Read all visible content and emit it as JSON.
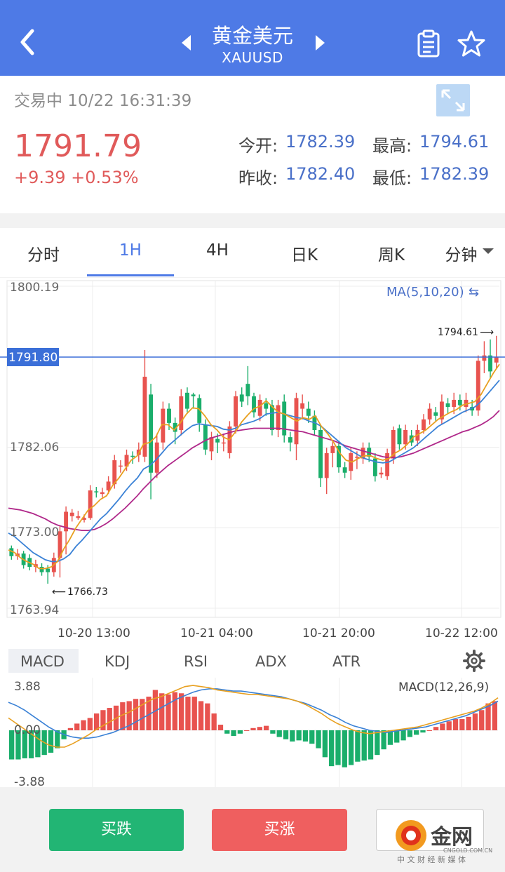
{
  "header": {
    "title": "黄金美元",
    "symbol": "XAUUSD"
  },
  "quote": {
    "status": "交易中 10/22 16:31:39",
    "price": "1791.79",
    "change": "+9.39 +0.53%",
    "open_label": "今开:",
    "open_value": "1782.39",
    "high_label": "最高:",
    "high_value": "1794.61",
    "prev_close_label": "昨收:",
    "prev_close_value": "1782.40",
    "low_label": "最低:",
    "low_value": "1782.39"
  },
  "tabs": {
    "items": [
      "分时",
      "1H",
      "4H",
      "日K",
      "周K",
      "分钟"
    ],
    "active": "1H"
  },
  "chart": {
    "ma_label": "MA(5,10,20)",
    "y_top": "1800.19",
    "y_mid": "1782.06",
    "y_lower": "1773.00",
    "y_bottom": "1763.94",
    "current_tag": "1791.80",
    "max_label": "1794.61",
    "min_label": "1766.73",
    "x_labels": [
      "10-20 13:00",
      "10-21 04:00",
      "10-21 20:00",
      "10-22 12:00"
    ],
    "colors": {
      "up": "#e8534f",
      "down": "#1aae6b",
      "ma5": "#e8a020",
      "ma10": "#3b82d6",
      "ma20": "#b0288a"
    }
  },
  "chart_data": {
    "type": "candlestick",
    "ylim": [
      1763.94,
      1800.19
    ],
    "candles": [
      [
        1770.7,
        1769.8,
        1771.0,
        1769.4
      ],
      [
        1769.8,
        1770.1,
        1770.6,
        1769.4
      ],
      [
        1770.1,
        1768.8,
        1770.4,
        1768.4
      ],
      [
        1769.6,
        1768.6,
        1770.0,
        1768.2
      ],
      [
        1768.6,
        1768.9,
        1769.4,
        1768.0
      ],
      [
        1768.6,
        1768.0,
        1769.0,
        1767.6
      ],
      [
        1768.4,
        1768.0,
        1768.8,
        1766.7
      ],
      [
        1768.0,
        1769.6,
        1770.2,
        1767.5
      ],
      [
        1769.6,
        1772.6,
        1773.2,
        1767.4
      ],
      [
        1772.6,
        1774.8,
        1775.4,
        1770.0
      ],
      [
        1774.3,
        1774.7,
        1775.1,
        1773.7
      ],
      [
        1774.1,
        1774.3,
        1774.9,
        1773.9
      ],
      [
        1773.9,
        1774.1,
        1774.5,
        1773.6
      ],
      [
        1774.1,
        1777.2,
        1777.8,
        1773.9
      ],
      [
        1777.1,
        1777.0,
        1777.6,
        1776.4
      ],
      [
        1776.8,
        1777.0,
        1777.5,
        1776.4
      ],
      [
        1777.2,
        1778.2,
        1778.8,
        1776.8
      ],
      [
        1777.9,
        1780.6,
        1781.2,
        1777.4
      ],
      [
        1779.9,
        1780.0,
        1780.6,
        1779.2
      ],
      [
        1779.9,
        1781.2,
        1781.8,
        1779.4
      ],
      [
        1781.1,
        1781.0,
        1781.6,
        1780.2
      ],
      [
        1781.2,
        1781.8,
        1782.6,
        1780.4
      ],
      [
        1781.0,
        1790.0,
        1793.0,
        1780.4
      ],
      [
        1788.0,
        1779.2,
        1789.2,
        1776.2
      ],
      [
        1779.2,
        1782.6,
        1783.6,
        1778.6
      ],
      [
        1782.6,
        1786.4,
        1787.2,
        1781.8
      ],
      [
        1786.4,
        1784.8,
        1787.0,
        1784.0
      ],
      [
        1784.8,
        1783.8,
        1785.4,
        1782.4
      ],
      [
        1784.0,
        1787.8,
        1788.6,
        1783.4
      ],
      [
        1788.2,
        1786.4,
        1788.8,
        1786.0
      ],
      [
        1788.0,
        1787.8,
        1788.2,
        1786.4
      ],
      [
        1787.6,
        1784.8,
        1788.0,
        1783.8
      ],
      [
        1784.6,
        1781.8,
        1785.2,
        1781.2
      ],
      [
        1781.6,
        1783.2,
        1783.8,
        1780.6
      ],
      [
        1783.0,
        1782.6,
        1783.6,
        1781.4
      ],
      [
        1782.6,
        1782.6,
        1783.6,
        1781.6
      ],
      [
        1781.4,
        1784.4,
        1785.0,
        1780.8
      ],
      [
        1784.4,
        1787.8,
        1788.4,
        1783.6
      ],
      [
        1788.0,
        1787.2,
        1788.8,
        1786.6
      ],
      [
        1789.2,
        1787.8,
        1791.2,
        1786.8
      ],
      [
        1787.8,
        1786.0,
        1788.2,
        1785.4
      ],
      [
        1785.6,
        1787.4,
        1788.0,
        1785.0
      ],
      [
        1787.0,
        1786.4,
        1787.6,
        1785.6
      ],
      [
        1786.8,
        1784.0,
        1787.4,
        1783.4
      ],
      [
        1784.0,
        1786.8,
        1787.4,
        1783.2
      ],
      [
        1787.2,
        1783.4,
        1788.0,
        1782.6
      ],
      [
        1783.2,
        1782.6,
        1783.8,
        1781.6
      ],
      [
        1782.4,
        1787.6,
        1788.2,
        1780.6
      ],
      [
        1786.4,
        1787.0,
        1788.0,
        1785.2
      ],
      [
        1786.4,
        1785.6,
        1787.2,
        1784.8
      ],
      [
        1785.6,
        1784.0,
        1786.2,
        1783.4
      ],
      [
        1784.0,
        1778.6,
        1784.6,
        1777.6
      ],
      [
        1778.6,
        1781.4,
        1782.0,
        1776.8
      ],
      [
        1781.4,
        1782.2,
        1782.8,
        1779.8
      ],
      [
        1782.2,
        1779.8,
        1782.8,
        1779.2
      ],
      [
        1779.8,
        1779.2,
        1780.4,
        1778.6
      ],
      [
        1779.4,
        1781.4,
        1782.0,
        1778.4
      ],
      [
        1781.0,
        1781.0,
        1781.6,
        1779.6
      ],
      [
        1780.8,
        1782.0,
        1782.6,
        1780.2
      ],
      [
        1782.0,
        1781.0,
        1782.6,
        1780.4
      ],
      [
        1780.8,
        1778.8,
        1781.4,
        1778.2
      ],
      [
        1779.0,
        1779.2,
        1779.8,
        1778.6
      ],
      [
        1778.8,
        1781.4,
        1781.9,
        1778.4
      ],
      [
        1780.8,
        1784.0,
        1784.4,
        1780.2
      ],
      [
        1784.2,
        1782.4,
        1784.6,
        1781.8
      ],
      [
        1782.4,
        1784.0,
        1784.6,
        1781.8
      ],
      [
        1783.4,
        1782.6,
        1784.0,
        1782.2
      ],
      [
        1782.8,
        1784.0,
        1784.6,
        1782.2
      ],
      [
        1784.0,
        1785.2,
        1785.8,
        1783.6
      ],
      [
        1785.2,
        1786.4,
        1787.0,
        1784.6
      ],
      [
        1786.0,
        1785.6,
        1786.6,
        1785.0
      ],
      [
        1785.2,
        1787.2,
        1788.0,
        1784.6
      ],
      [
        1787.0,
        1786.6,
        1787.6,
        1785.8
      ],
      [
        1786.6,
        1787.4,
        1788.2,
        1785.8
      ],
      [
        1787.4,
        1786.8,
        1788.0,
        1786.2
      ],
      [
        1786.6,
        1787.4,
        1788.2,
        1786.0
      ],
      [
        1786.6,
        1786.2,
        1787.4,
        1785.6
      ],
      [
        1786.2,
        1791.8,
        1792.4,
        1785.6
      ],
      [
        1791.8,
        1792.4,
        1794.0,
        1790.4
      ],
      [
        1792.4,
        1790.6,
        1794.2,
        1789.8
      ],
      [
        1791.6,
        1792.2,
        1794.6,
        1791.0
      ]
    ],
    "ma5": [
      1770.5,
      1770.2,
      1769.6,
      1769.2,
      1768.9,
      1768.4,
      1768.4,
      1768.6,
      1769.2,
      1770.6,
      1771.7,
      1773.0,
      1774.0,
      1775.0,
      1775.5,
      1776.2,
      1776.6,
      1777.8,
      1778.6,
      1779.6,
      1780.6,
      1781.1,
      1782.4,
      1782.6,
      1783.2,
      1784.6,
      1784.6,
      1784.0,
      1784.8,
      1785.8,
      1786.5,
      1786.4,
      1785.6,
      1784.6,
      1784.0,
      1783.2,
      1782.9,
      1783.8,
      1784.9,
      1785.7,
      1786.4,
      1786.7,
      1787.3,
      1786.6,
      1786.0,
      1785.8,
      1785.4,
      1785.0,
      1785.4,
      1785.2,
      1785.6,
      1784.4,
      1783.6,
      1782.6,
      1781.4,
      1780.6,
      1780.4,
      1780.8,
      1781.1,
      1781.1,
      1780.8,
      1780.6,
      1780.8,
      1781.4,
      1781.8,
      1782.4,
      1783.2,
      1783.6,
      1784.0,
      1784.6,
      1785.2,
      1785.6,
      1786.0,
      1786.3,
      1786.8,
      1787.0,
      1787.2,
      1788.0,
      1789.2,
      1790.4,
      1791.4
    ],
    "ma10": [
      1772.4,
      1772.0,
      1771.4,
      1770.8,
      1770.2,
      1769.8,
      1769.4,
      1769.2,
      1769.2,
      1769.5,
      1770.0,
      1770.9,
      1771.6,
      1772.4,
      1773.2,
      1774.0,
      1774.6,
      1775.4,
      1776.2,
      1777.1,
      1777.9,
      1778.6,
      1779.6,
      1780.0,
      1780.6,
      1781.4,
      1782.2,
      1782.8,
      1783.4,
      1784.0,
      1784.5,
      1784.7,
      1784.6,
      1784.5,
      1784.4,
      1784.1,
      1784.0,
      1784.2,
      1784.6,
      1784.8,
      1785.0,
      1785.3,
      1785.8,
      1785.9,
      1786.0,
      1785.8,
      1785.6,
      1785.4,
      1785.3,
      1785.0,
      1784.8,
      1784.4,
      1783.8,
      1783.2,
      1782.6,
      1782.0,
      1781.6,
      1781.2,
      1780.8,
      1780.6,
      1780.4,
      1780.3,
      1780.4,
      1780.8,
      1781.2,
      1781.6,
      1782.0,
      1782.6,
      1783.2,
      1783.8,
      1784.4,
      1784.8,
      1785.2,
      1785.6,
      1786.0,
      1786.3,
      1786.6,
      1787.2,
      1788.0,
      1788.8,
      1789.6
    ],
    "ma20": [
      1775.2,
      1775.1,
      1775.0,
      1774.8,
      1774.6,
      1774.3,
      1774.0,
      1773.6,
      1773.3,
      1773.1,
      1772.9,
      1772.8,
      1772.7,
      1772.7,
      1772.8,
      1773.1,
      1773.5,
      1774.0,
      1774.6,
      1775.2,
      1775.9,
      1776.6,
      1777.4,
      1778.1,
      1778.8,
      1779.4,
      1780.0,
      1780.5,
      1781.0,
      1781.5,
      1782.0,
      1782.4,
      1782.8,
      1783.1,
      1783.3,
      1783.5,
      1783.7,
      1783.9,
      1784.0,
      1784.1,
      1784.2,
      1784.2,
      1784.2,
      1784.2,
      1784.2,
      1784.1,
      1784.0,
      1783.9,
      1783.8,
      1783.6,
      1783.4,
      1783.2,
      1783.0,
      1782.8,
      1782.5,
      1782.2,
      1782.0,
      1781.8,
      1781.6,
      1781.4,
      1781.2,
      1781.0,
      1780.9,
      1780.9,
      1781.0,
      1781.2,
      1781.4,
      1781.7,
      1782.0,
      1782.3,
      1782.6,
      1782.9,
      1783.2,
      1783.5,
      1783.8,
      1784.0,
      1784.3,
      1784.6,
      1785.0,
      1785.5,
      1786.2
    ]
  },
  "indicators": {
    "tabs": [
      "MACD",
      "KDJ",
      "RSI",
      "ADX",
      "ATR"
    ],
    "active": "MACD",
    "macd_label": "MACD(12,26,9)",
    "y_top": "3.88",
    "y_mid": "0.00",
    "y_bottom": "-3.88",
    "hist": [
      -2.6,
      -2.6,
      -2.5,
      -2.5,
      -2.4,
      -2.2,
      -2.0,
      -1.6,
      -0.8,
      0.2,
      0.6,
      0.9,
      1.1,
      1.5,
      1.8,
      2.0,
      2.2,
      2.5,
      2.6,
      2.8,
      2.8,
      3.0,
      3.6,
      3.3,
      3.2,
      3.4,
      3.3,
      3.0,
      3.0,
      2.6,
      2.4,
      1.5,
      0.5,
      -0.3,
      -0.5,
      -0.3,
      0.0,
      0.2,
      0.3,
      0.4,
      -0.3,
      -0.6,
      -0.8,
      -1.0,
      -0.9,
      -1.0,
      -1.2,
      -1.6,
      -2.4,
      -3.2,
      -3.1,
      -3.3,
      -3.1,
      -2.8,
      -2.7,
      -2.6,
      -2.2,
      -1.7,
      -1.3,
      -1.1,
      -0.9,
      -0.6,
      -0.4,
      -0.2,
      0.0,
      0.3,
      0.6,
      0.8,
      1.0,
      1.0,
      1.2,
      1.5,
      1.8,
      2.4,
      2.6
    ],
    "macd": [
      1.1,
      0.6,
      0.1,
      -0.4,
      -0.9,
      -1.3,
      -1.5,
      -1.5,
      -1.2,
      -0.8,
      -0.4,
      0.1,
      0.5,
      0.9,
      1.3,
      1.6,
      2.0,
      2.4,
      2.8,
      3.0,
      3.3,
      3.6,
      3.9,
      4.0,
      3.9,
      3.8,
      3.6,
      3.5,
      3.4,
      3.3,
      3.2,
      3.2,
      3.1,
      3.0,
      2.9,
      2.8,
      2.6,
      2.3,
      1.9,
      1.5,
      1.0,
      0.6,
      0.3,
      0.0,
      -0.2,
      -0.3,
      -0.2,
      -0.1,
      0.0,
      0.1,
      0.2,
      0.3,
      0.5,
      0.7,
      0.9,
      1.1,
      1.3,
      1.5,
      1.7,
      2.0,
      2.4,
      2.9
    ],
    "signal": [
      2.5,
      2.2,
      1.8,
      1.3,
      0.8,
      0.3,
      -0.1,
      -0.4,
      -0.6,
      -0.7,
      -0.7,
      -0.6,
      -0.4,
      -0.2,
      0.1,
      0.4,
      0.8,
      1.2,
      1.6,
      2.0,
      2.4,
      2.8,
      3.1,
      3.4,
      3.6,
      3.7,
      3.7,
      3.6,
      3.5,
      3.5,
      3.4,
      3.3,
      3.2,
      3.1,
      3.0,
      2.8,
      2.6,
      2.4,
      2.1,
      1.8,
      1.4,
      1.1,
      0.7,
      0.4,
      0.2,
      0.0,
      -0.1,
      -0.2,
      -0.1,
      0.0,
      0.1,
      0.2,
      0.3,
      0.5,
      0.7,
      0.9,
      1.1,
      1.3,
      1.6,
      1.9,
      2.2,
      2.6
    ]
  },
  "actions": {
    "sell": "买跌",
    "buy": "买涨"
  },
  "watermark": {
    "brand": "金网",
    "domain": "CNGOLD.COM.CN",
    "tagline": "中 文 财 经 新 媒 体"
  }
}
